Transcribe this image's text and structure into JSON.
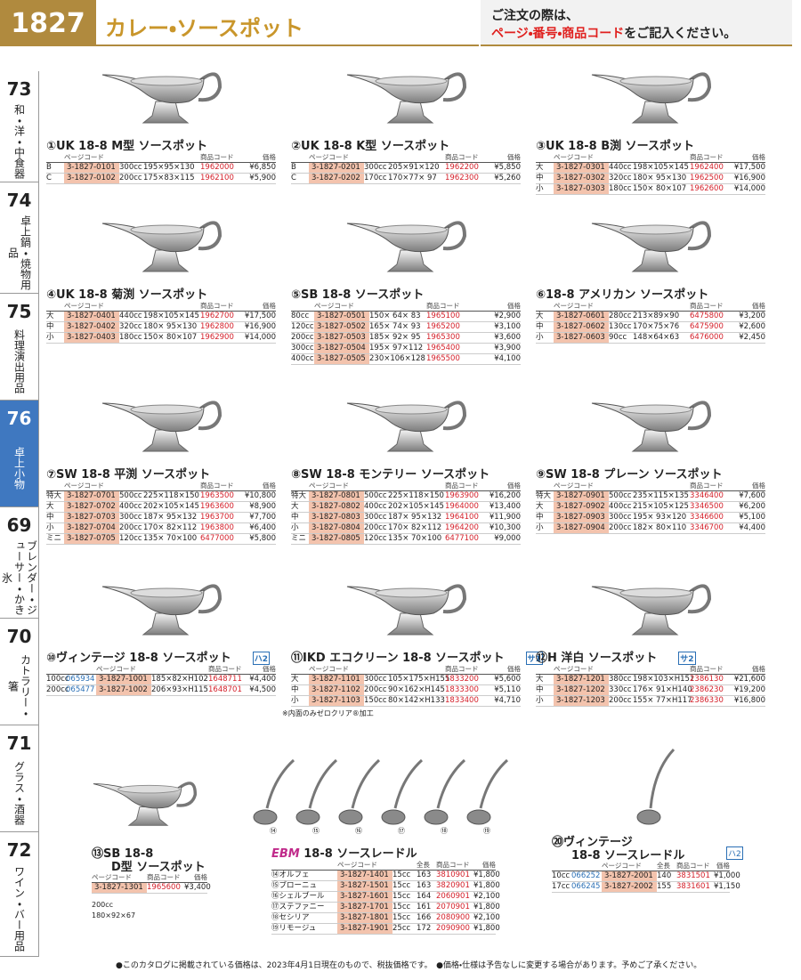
{
  "header": {
    "page_number": "1827",
    "title": "カレー・ソースポット",
    "notice_line1": "ご注文の際は、",
    "notice_emphasis": "ページ・番号・商品コード",
    "notice_rest": "をご記入ください。"
  },
  "side_tabs": [
    {
      "number": "73",
      "label": "和・洋・中食器"
    },
    {
      "number": "74",
      "label": "卓上鍋・焼物用品"
    },
    {
      "number": "75",
      "label": "料理演出用品"
    },
    {
      "number": "76",
      "label": "卓上小物"
    },
    {
      "number": "69",
      "label": "ブレンダー・ジューサー・かき氷"
    },
    {
      "number": "70",
      "label": "カトラリー・箸"
    },
    {
      "number": "71",
      "label": "グラス・酒器"
    },
    {
      "number": "72",
      "label": "ワイン・バー用品"
    }
  ],
  "active_tab": 3,
  "table_headers": {
    "page_code": "ページコード",
    "length": "全長",
    "code": "商品コード",
    "price": "価格"
  },
  "products": [
    {
      "title": "①UK 18-8 M型 ソースポット",
      "rows": [
        {
          "label": "B",
          "page_code": "3-1827-0101",
          "capacity": "300cc",
          "size": "195×95×130",
          "code": "1962000",
          "price": "¥6,850"
        },
        {
          "label": "C",
          "page_code": "3-1827-0102",
          "capacity": "200cc",
          "size": "175×83×115",
          "code": "1962100",
          "price": "¥5,900"
        }
      ]
    },
    {
      "title": "②UK 18-8 K型 ソースポット",
      "rows": [
        {
          "label": "B",
          "page_code": "3-1827-0201",
          "capacity": "300cc",
          "size": "205×91×120",
          "code": "1962200",
          "price": "¥5,850"
        },
        {
          "label": "C",
          "page_code": "3-1827-0202",
          "capacity": "170cc",
          "size": "170×77× 97",
          "code": "1962300",
          "price": "¥5,260"
        }
      ]
    },
    {
      "title": "③UK 18-8 B渕 ソースポット",
      "rows": [
        {
          "label": "大",
          "page_code": "3-1827-0301",
          "capacity": "440cc",
          "size": "198×105×145",
          "code": "1962400",
          "price": "¥17,500"
        },
        {
          "label": "中",
          "page_code": "3-1827-0302",
          "capacity": "320cc",
          "size": "180× 95×130",
          "code": "1962500",
          "price": "¥16,900"
        },
        {
          "label": "小",
          "page_code": "3-1827-0303",
          "capacity": "180cc",
          "size": "150× 80×107",
          "code": "1962600",
          "price": "¥14,000"
        }
      ]
    },
    {
      "title": "④UK 18-8 菊渕 ソースポット",
      "rows": [
        {
          "label": "大",
          "page_code": "3-1827-0401",
          "capacity": "440cc",
          "size": "198×105×145",
          "code": "1962700",
          "price": "¥17,500"
        },
        {
          "label": "中",
          "page_code": "3-1827-0402",
          "capacity": "320cc",
          "size": "180× 95×130",
          "code": "1962800",
          "price": "¥16,900"
        },
        {
          "label": "小",
          "page_code": "3-1827-0403",
          "capacity": "180cc",
          "size": "150× 80×107",
          "code": "1962900",
          "price": "¥14,000"
        }
      ]
    },
    {
      "title": "⑤SB 18-8 ソースポット",
      "rows": [
        {
          "label": "80cc",
          "page_code": "3-1827-0501",
          "size": "150× 64× 83",
          "code": "1965100",
          "price": "¥2,900"
        },
        {
          "label": "120cc",
          "page_code": "3-1827-0502",
          "size": "165× 74× 93",
          "code": "1965200",
          "price": "¥3,100"
        },
        {
          "label": "200cc",
          "page_code": "3-1827-0503",
          "size": "185× 92× 95",
          "code": "1965300",
          "price": "¥3,600"
        },
        {
          "label": "300cc",
          "page_code": "3-1827-0504",
          "size": "195× 97×112",
          "code": "1965400",
          "price": "¥3,900"
        },
        {
          "label": "400cc",
          "page_code": "3-1827-0505",
          "size": "230×106×128",
          "code": "1965500",
          "price": "¥4,100"
        }
      ]
    },
    {
      "title": "⑥18-8 アメリカン ソースポット",
      "rows": [
        {
          "label": "大",
          "page_code": "3-1827-0601",
          "capacity": "280cc",
          "size": "213×89×90",
          "code": "6475800",
          "price": "¥3,200"
        },
        {
          "label": "中",
          "page_code": "3-1827-0602",
          "capacity": "130cc",
          "size": "170×75×76",
          "code": "6475900",
          "price": "¥2,600"
        },
        {
          "label": "小",
          "page_code": "3-1827-0603",
          "capacity": "90cc",
          "size": "148×64×63",
          "code": "6476000",
          "price": "¥2,450"
        }
      ]
    },
    {
      "title": "⑦SW 18-8 平渕 ソースポット",
      "rows": [
        {
          "label": "特大",
          "page_code": "3-1827-0701",
          "capacity": "500cc",
          "size": "225×118×150",
          "code": "1963500",
          "price": "¥10,800"
        },
        {
          "label": "大",
          "page_code": "3-1827-0702",
          "capacity": "400cc",
          "size": "202×105×145",
          "code": "1963600",
          "price": "¥8,900"
        },
        {
          "label": "中",
          "page_code": "3-1827-0703",
          "capacity": "300cc",
          "size": "187× 95×132",
          "code": "1963700",
          "price": "¥7,700"
        },
        {
          "label": "小",
          "page_code": "3-1827-0704",
          "capacity": "200cc",
          "size": "170× 82×112",
          "code": "1963800",
          "price": "¥6,400"
        },
        {
          "label": "ミニ",
          "page_code": "3-1827-0705",
          "capacity": "120cc",
          "size": "135× 70×100",
          "code": "6477000",
          "price": "¥5,800"
        }
      ]
    },
    {
      "title": "⑧SW 18-8 モンテリー ソースポット",
      "rows": [
        {
          "label": "特大",
          "page_code": "3-1827-0801",
          "capacity": "500cc",
          "size": "225×118×150",
          "code": "1963900",
          "price": "¥16,200"
        },
        {
          "label": "大",
          "page_code": "3-1827-0802",
          "capacity": "400cc",
          "size": "202×105×145",
          "code": "1964000",
          "price": "¥13,400"
        },
        {
          "label": "中",
          "page_code": "3-1827-0803",
          "capacity": "300cc",
          "size": "187× 95×132",
          "code": "1964100",
          "price": "¥11,900"
        },
        {
          "label": "小",
          "page_code": "3-1827-0804",
          "capacity": "200cc",
          "size": "170× 82×112",
          "code": "1964200",
          "price": "¥10,300"
        },
        {
          "label": "ミニ",
          "page_code": "3-1827-0805",
          "capacity": "120cc",
          "size": "135× 70×100",
          "code": "6477100",
          "price": "¥9,000"
        }
      ]
    },
    {
      "title": "⑨SW 18-8 プレーン ソースポット",
      "rows": [
        {
          "label": "特大",
          "page_code": "3-1827-0901",
          "capacity": "500cc",
          "size": "235×115×135",
          "code": "3346400",
          "price": "¥7,600"
        },
        {
          "label": "大",
          "page_code": "3-1827-0902",
          "capacity": "400cc",
          "size": "215×105×125",
          "code": "3346500",
          "price": "¥6,200"
        },
        {
          "label": "中",
          "page_code": "3-1827-0903",
          "capacity": "300cc",
          "size": "195× 93×120",
          "code": "3346600",
          "price": "¥5,100"
        },
        {
          "label": "小",
          "page_code": "3-1827-0904",
          "capacity": "200cc",
          "size": "182× 80×110",
          "code": "3346700",
          "price": "¥4,400"
        }
      ]
    },
    {
      "title": "⑩ヴィンテージ 18-8 ソースポット",
      "badge": "ハ2",
      "rows": [
        {
          "label": "100cc",
          "item_no": "065934",
          "page_code": "3-1827-1001",
          "size": "185×82×H102",
          "code": "1648711",
          "price": "¥4,400"
        },
        {
          "label": "200cc",
          "item_no": "065477",
          "page_code": "3-1827-1002",
          "size": "206×93×H115",
          "code": "1648701",
          "price": "¥4,500"
        }
      ]
    },
    {
      "title": "⑪IKD エコクリーン 18-8 ソースポット",
      "badge": "サ1",
      "note": "※内面のみゼロクリア®加工",
      "rows": [
        {
          "label": "大",
          "page_code": "3-1827-1101",
          "capacity": "300cc",
          "size": "105×175×H155",
          "code": "1833200",
          "price": "¥5,600"
        },
        {
          "label": "中",
          "page_code": "3-1827-1102",
          "capacity": "200cc",
          "size": "90×162×H145",
          "code": "1833300",
          "price": "¥5,110"
        },
        {
          "label": "小",
          "page_code": "3-1827-1103",
          "capacity": "150cc",
          "size": "80×142×H133",
          "code": "1833400",
          "price": "¥4,710"
        }
      ]
    },
    {
      "title": "⑫H 洋白 ソースポット",
      "badge": "サ2",
      "rows": [
        {
          "label": "大",
          "page_code": "3-1827-1201",
          "capacity": "380cc",
          "size": "198×103×H151",
          "code": "2386130",
          "price": "¥21,600"
        },
        {
          "label": "中",
          "page_code": "3-1827-1202",
          "capacity": "330cc",
          "size": "176× 91×H140",
          "code": "2386230",
          "price": "¥19,200"
        },
        {
          "label": "小",
          "page_code": "3-1827-1203",
          "capacity": "200cc",
          "size": "155× 77×H117",
          "code": "2386330",
          "price": "¥16,800"
        }
      ]
    },
    {
      "title": "⑬SB 18-8",
      "subtitle": "D型 ソースポット",
      "spec": [
        "200cc",
        "180×92×67"
      ],
      "rows": [
        {
          "page_code": "3-1827-1301",
          "code": "1965600",
          "price": "¥3,400"
        }
      ]
    },
    {
      "brand": "EBM",
      "title": "18-8 ソースレードル",
      "markers": [
        "⑭",
        "⑮",
        "⑯",
        "⑰",
        "⑱",
        "⑲"
      ],
      "rows": [
        {
          "label": "⑭オルフェ",
          "page_code": "3-1827-1401",
          "capacity": "15cc",
          "length": "163",
          "code": "3810901",
          "price": "¥1,800"
        },
        {
          "label": "⑮ブローニュ",
          "page_code": "3-1827-1501",
          "capacity": "15cc",
          "length": "163",
          "code": "3820901",
          "price": "¥1,800"
        },
        {
          "label": "⑯シェルブール",
          "page_code": "3-1827-1601",
          "capacity": "15cc",
          "length": "164",
          "code": "2060901",
          "price": "¥2,100"
        },
        {
          "label": "⑰ステファニー",
          "page_code": "3-1827-1701",
          "capacity": "15cc",
          "length": "161",
          "code": "2070901",
          "price": "¥1,800"
        },
        {
          "label": "⑱セシリア",
          "page_code": "3-1827-1801",
          "capacity": "15cc",
          "length": "166",
          "code": "2080900",
          "price": "¥2,100"
        },
        {
          "label": "⑲リモージュ",
          "page_code": "3-1827-1901",
          "capacity": "25cc",
          "length": "172",
          "code": "2090900",
          "price": "¥1,800"
        }
      ]
    },
    {
      "title": "⑳ヴィンテージ",
      "subtitle": "18-8 ソースレードル",
      "badge": "ハ2",
      "rows": [
        {
          "label": "10cc",
          "item_no": "066252",
          "page_code": "3-1827-2001",
          "length": "140",
          "code": "3831501",
          "price": "¥1,000"
        },
        {
          "label": "17cc",
          "item_no": "066245",
          "page_code": "3-1827-2002",
          "length": "155",
          "code": "3831601",
          "price": "¥1,150"
        }
      ]
    }
  ],
  "footer": "●このカタログに掲載されている価格は、2023年4月1日現在のもので、税抜価格です。　●価格・仕様は予告なしに変更する場合があります。予めご了承ください。"
}
